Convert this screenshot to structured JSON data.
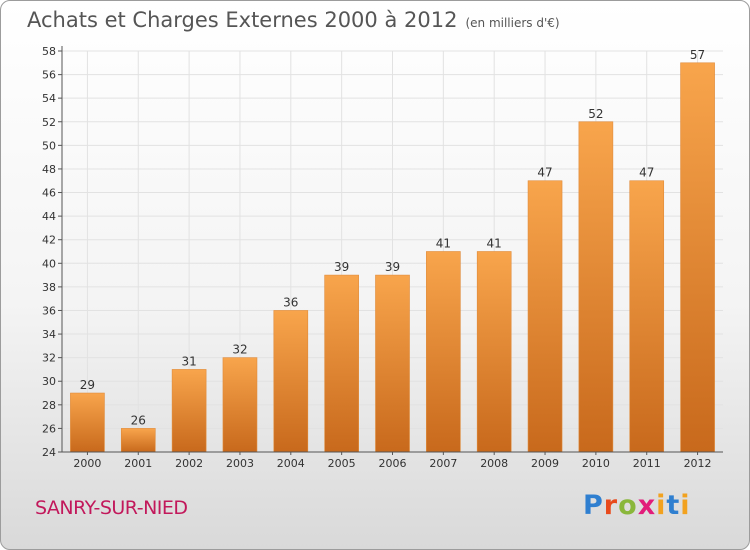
{
  "header": {
    "title": "Achats et Charges Externes 2000 à 2012",
    "subtitle": "(en milliers d'€)"
  },
  "footer": {
    "town": "SANRY-SUR-NIED",
    "logo": "Proxiti"
  },
  "colors": {
    "bar_top": "#f8a54c",
    "bar_bottom": "#c8691c",
    "grid": "#e2e2e2",
    "axis": "#555555",
    "town": "#c2185b"
  },
  "chart_data": {
    "type": "bar",
    "title": "Achats et Charges Externes 2000 à 2012",
    "subtitle": "(en milliers d'€)",
    "categories": [
      "2000",
      "2001",
      "2002",
      "2003",
      "2004",
      "2005",
      "2006",
      "2007",
      "2008",
      "2009",
      "2010",
      "2011",
      "2012"
    ],
    "values": [
      29,
      26,
      31,
      32,
      36,
      39,
      39,
      41,
      41,
      47,
      52,
      47,
      57
    ],
    "ylim": [
      24,
      58
    ],
    "ytick_step": 2,
    "grid": true,
    "data_labels": true
  }
}
